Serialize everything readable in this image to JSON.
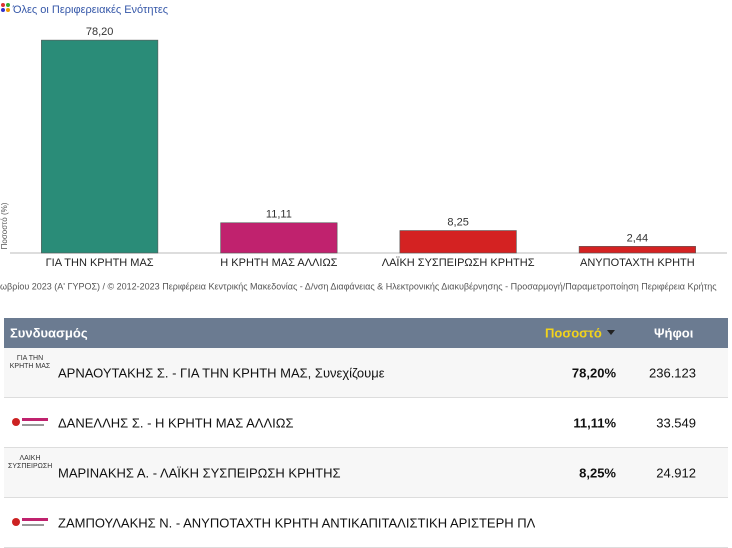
{
  "chart_data": {
    "type": "bar",
    "title": "Όλες οι Περιφερειακές Ενότητες",
    "y_label": "Ποσοστό (%)",
    "categories": [
      "ΓΙΑ ΤΗΝ ΚΡΗΤΗ ΜΑΣ",
      "Η ΚΡΗΤΗ ΜΑΣ ΑΛΛΙΩΣ",
      "ΛΑΪΚΗ ΣΥΣΠΕΙΡΩΣΗ ΚΡΗΤΗΣ",
      "ΑΝΥΠΟΤΑΧΤΗ ΚΡΗΤΗ"
    ],
    "values": [
      78.2,
      11.11,
      8.25,
      2.44
    ],
    "value_labels": [
      "78,20",
      "11,11",
      "8,25",
      "2,44"
    ],
    "colors": [
      "#2a8c78",
      "#c0226e",
      "#d42222",
      "#d42222"
    ],
    "ylim": [
      0,
      90
    ]
  },
  "footer": "ωβρίου 2023 (Α' ΓΥΡΟΣ) / © 2012-2023 Περιφέρεια Κεντρικής Μακεδονίας - Δ/νση Διαφάνειας & Ηλεκτρονικής Διακυβέρνησης - Προσαρμογή/Παραμετροποίηση Περιφέρεια Κρήτης",
  "table": {
    "header": [
      "Συνδυασμός",
      "Ποσοστό",
      "Ψήφοι"
    ],
    "rows": [
      [
        "ΑΡΝΑΟΥΤΑΚΗΣ Σ. - ΓΙΑ ΤΗΝ ΚΡΗΤΗ ΜΑΣ, Συνεχίζουμε",
        "78,20%",
        "236.123"
      ],
      [
        "ΔΑΝΕΛΛΗΣ Σ. - Η ΚΡΗΤΗ ΜΑΣ ΑΛΛΙΩΣ",
        "11,11%",
        "33.549"
      ],
      [
        "ΜΑΡΙΝΑΚΗΣ Α. - ΛΑΪΚΗ ΣΥΣΠΕΙΡΩΣΗ ΚΡΗΤΗΣ",
        "8,25%",
        "24.912"
      ],
      [
        "ΖΑΜΠΟΥΛΑΚΗΣ Ν. - ΑΝΥΠΟΤΑΧΤΗ ΚΡΗΤΗ ΑΝΤΙΚΑΠΙΤΑΛΙΣΤΙΚΗ ΑΡΙΣΤΕΡΗ ΠΛ"
      ]
    ],
    "logos": [
      "ΓΙΑ ΤΗΝ ΚΡΗΤΗ ΜΑΣ",
      "ΛΑΪΚΗ ΣΥΣΠΕΙΡΩΣΗ"
    ]
  }
}
